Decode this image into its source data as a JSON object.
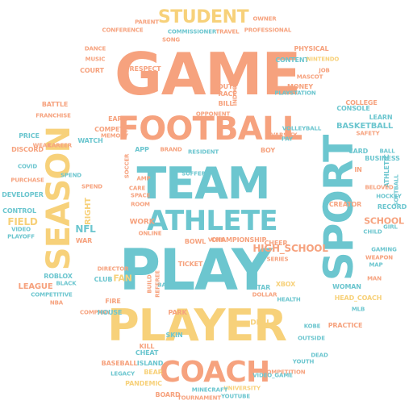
{
  "colors": {
    "orange": "#f6a27e",
    "yellow": "#f7d17a",
    "teal": "#6cc6cf"
  },
  "words": [
    {
      "text": "GAME",
      "color": "orange"
    },
    {
      "text": "FOOTBALL",
      "color": "orange"
    },
    {
      "text": "TEAM",
      "color": "teal"
    },
    {
      "text": "ATHLETE",
      "color": "teal"
    },
    {
      "text": "PLAY",
      "color": "teal"
    },
    {
      "text": "PLAYER",
      "color": "yellow"
    },
    {
      "text": "COACH",
      "color": "orange"
    },
    {
      "text": "SEASON",
      "color": "yellow"
    },
    {
      "text": "SPORT",
      "color": "teal"
    },
    {
      "text": "STUDENT",
      "color": "yellow"
    },
    {
      "text": "HIGH_SCHOOL",
      "color": "orange"
    },
    {
      "text": "CHAMPIONSHIP",
      "color": "orange"
    },
    {
      "text": "BASKETBALL",
      "color": "teal"
    },
    {
      "text": "SCHOOL",
      "color": "orange"
    },
    {
      "text": "FIELD",
      "color": "yellow"
    },
    {
      "text": "NFL",
      "color": "teal"
    },
    {
      "text": "LEAGUE",
      "color": "orange"
    },
    {
      "text": "CONFERENCE",
      "color": "orange"
    },
    {
      "text": "COMMISSIONER",
      "color": "teal"
    },
    {
      "text": "TRAVEL",
      "color": "orange"
    },
    {
      "text": "PROFESSIONAL",
      "color": "orange"
    },
    {
      "text": "PHYSICAL",
      "color": "orange"
    },
    {
      "text": "CONTENT",
      "color": "teal"
    },
    {
      "text": "NINTENDO",
      "color": "yellow"
    },
    {
      "text": "MONEY",
      "color": "orange"
    },
    {
      "text": "PLAYSTATION",
      "color": "teal"
    },
    {
      "text": "VARSITY",
      "color": "orange"
    },
    {
      "text": "VOLLEYBALL",
      "color": "teal"
    },
    {
      "text": "COLLEGE",
      "color": "orange"
    },
    {
      "text": "CONSOLE",
      "color": "teal"
    },
    {
      "text": "SAFETY",
      "color": "orange"
    },
    {
      "text": "LEARN",
      "color": "teal"
    },
    {
      "text": "ATHLETIC",
      "color": "teal"
    },
    {
      "text": "BUSINESS",
      "color": "teal"
    },
    {
      "text": "BELOVED",
      "color": "orange"
    },
    {
      "text": "SOFTBALL",
      "color": "teal"
    },
    {
      "text": "HOCKEY",
      "color": "teal"
    },
    {
      "text": "RECORD",
      "color": "teal"
    },
    {
      "text": "CREATOR",
      "color": "orange"
    },
    {
      "text": "GAMING",
      "color": "teal"
    },
    {
      "text": "WEAPON",
      "color": "orange"
    },
    {
      "text": "WOMAN",
      "color": "teal"
    },
    {
      "text": "HEAD_COACH",
      "color": "yellow"
    },
    {
      "text": "PRACTICE",
      "color": "orange"
    },
    {
      "text": "OUTSIDE",
      "color": "teal"
    },
    {
      "text": "DEAD",
      "color": "teal"
    },
    {
      "text": "YOUTH",
      "color": "teal"
    },
    {
      "text": "MLB",
      "color": "teal"
    },
    {
      "text": "KOBE",
      "color": "teal"
    },
    {
      "text": "DEAL",
      "color": "yellow"
    },
    {
      "text": "XBOX",
      "color": "yellow"
    },
    {
      "text": "HEALTH",
      "color": "teal"
    },
    {
      "text": "COMPETITION",
      "color": "orange"
    },
    {
      "text": "VIDEO_GAME",
      "color": "teal"
    },
    {
      "text": "UNIVERSITY",
      "color": "yellow"
    },
    {
      "text": "YOUTUBE",
      "color": "teal"
    },
    {
      "text": "TOURNAMENT",
      "color": "orange"
    },
    {
      "text": "BOARD",
      "color": "orange"
    },
    {
      "text": "MINECRAFT",
      "color": "teal"
    },
    {
      "text": "PANDEMIC",
      "color": "yellow"
    },
    {
      "text": "BASEBALL",
      "color": "orange"
    },
    {
      "text": "LEGACY",
      "color": "teal"
    },
    {
      "text": "BEAR",
      "color": "yellow"
    },
    {
      "text": "ISLAND",
      "color": "teal"
    },
    {
      "text": "CHEAT",
      "color": "teal"
    },
    {
      "text": "SKIN",
      "color": "teal"
    },
    {
      "text": "KILL",
      "color": "orange"
    },
    {
      "text": "FIRE",
      "color": "orange"
    },
    {
      "text": "COMPANY",
      "color": "orange"
    },
    {
      "text": "HOUSE",
      "color": "teal"
    },
    {
      "text": "PARK",
      "color": "orange"
    },
    {
      "text": "ROBLOX",
      "color": "teal"
    },
    {
      "text": "BLACK",
      "color": "teal"
    },
    {
      "text": "COMPETITIVE",
      "color": "teal"
    },
    {
      "text": "NBA",
      "color": "orange"
    },
    {
      "text": "CLUB",
      "color": "teal"
    },
    {
      "text": "FAN",
      "color": "yellow"
    },
    {
      "text": "DIRECTOR",
      "color": "orange"
    },
    {
      "text": "WAR",
      "color": "orange"
    },
    {
      "text": "PLAYOFF",
      "color": "teal"
    },
    {
      "text": "VIDEO",
      "color": "teal"
    },
    {
      "text": "CONTROL",
      "color": "teal"
    },
    {
      "text": "DEVELOPER",
      "color": "teal"
    },
    {
      "text": "PURCHASE",
      "color": "orange"
    },
    {
      "text": "DISCORD",
      "color": "orange"
    },
    {
      "text": "PRICE",
      "color": "teal"
    },
    {
      "text": "COVID",
      "color": "teal"
    },
    {
      "text": "FRANCHISE",
      "color": "orange"
    },
    {
      "text": "BATTLE",
      "color": "orange"
    },
    {
      "text": "WEAR",
      "color": "orange"
    },
    {
      "text": "CAREER",
      "color": "orange"
    },
    {
      "text": "DANCE",
      "color": "orange"
    },
    {
      "text": "COURT",
      "color": "orange"
    },
    {
      "text": "MUSIC",
      "color": "orange"
    },
    {
      "text": "RESPECT",
      "color": "orange"
    },
    {
      "text": "PARENT",
      "color": "orange"
    },
    {
      "text": "OWNER",
      "color": "orange"
    },
    {
      "text": "SONG",
      "color": "orange"
    },
    {
      "text": "JOB",
      "color": "orange"
    },
    {
      "text": "MASCOT",
      "color": "orange"
    },
    {
      "text": "DUTY",
      "color": "orange"
    },
    {
      "text": "RACE",
      "color": "orange"
    },
    {
      "text": "BILL",
      "color": "orange"
    },
    {
      "text": "EARN",
      "color": "orange"
    },
    {
      "text": "COMPETE",
      "color": "orange"
    },
    {
      "text": "MEMORY",
      "color": "orange"
    },
    {
      "text": "WATCH",
      "color": "teal"
    },
    {
      "text": "BOY",
      "color": "orange"
    },
    {
      "text": "PAY",
      "color": "teal"
    },
    {
      "text": "CARD",
      "color": "teal"
    },
    {
      "text": "BALL",
      "color": "teal"
    },
    {
      "text": "MAN",
      "color": "orange"
    },
    {
      "text": "CHILD",
      "color": "teal"
    },
    {
      "text": "CHEER",
      "color": "orange"
    },
    {
      "text": "SERIES",
      "color": "orange"
    },
    {
      "text": "STAR",
      "color": "teal"
    },
    {
      "text": "DOLLAR",
      "color": "orange"
    },
    {
      "text": "BANK",
      "color": "teal"
    },
    {
      "text": "TICKET",
      "color": "orange"
    },
    {
      "text": "WORK",
      "color": "orange"
    },
    {
      "text": "BOWL",
      "color": "orange"
    },
    {
      "text": "RIGHT",
      "color": "yellow"
    },
    {
      "text": "ROOM",
      "color": "orange"
    },
    {
      "text": "CARE",
      "color": "orange"
    },
    {
      "text": "SPACE",
      "color": "orange"
    },
    {
      "text": "SUFFER",
      "color": "teal"
    },
    {
      "text": "APP",
      "color": "teal"
    },
    {
      "text": "AMP",
      "color": "orange"
    },
    {
      "text": "RESIDENT",
      "color": "teal"
    },
    {
      "text": "SOCCER",
      "color": "orange"
    },
    {
      "text": "SPEND",
      "color": "orange"
    },
    {
      "text": "BUILD",
      "color": "orange"
    },
    {
      "text": "REFEREE",
      "color": "orange"
    },
    {
      "text": "ONLINE",
      "color": "orange"
    },
    {
      "text": "VOTE",
      "color": "orange"
    },
    {
      "text": "INDOOR",
      "color": "orange"
    },
    {
      "text": "OPPONENT",
      "color": "orange"
    },
    {
      "text": "BRAND",
      "color": "orange"
    },
    {
      "text": "IN",
      "color": "orange"
    },
    {
      "text": "GIRL",
      "color": "teal"
    },
    {
      "text": "MAP",
      "color": "teal"
    },
    {
      "text": "SPEND",
      "color": "teal"
    }
  ]
}
